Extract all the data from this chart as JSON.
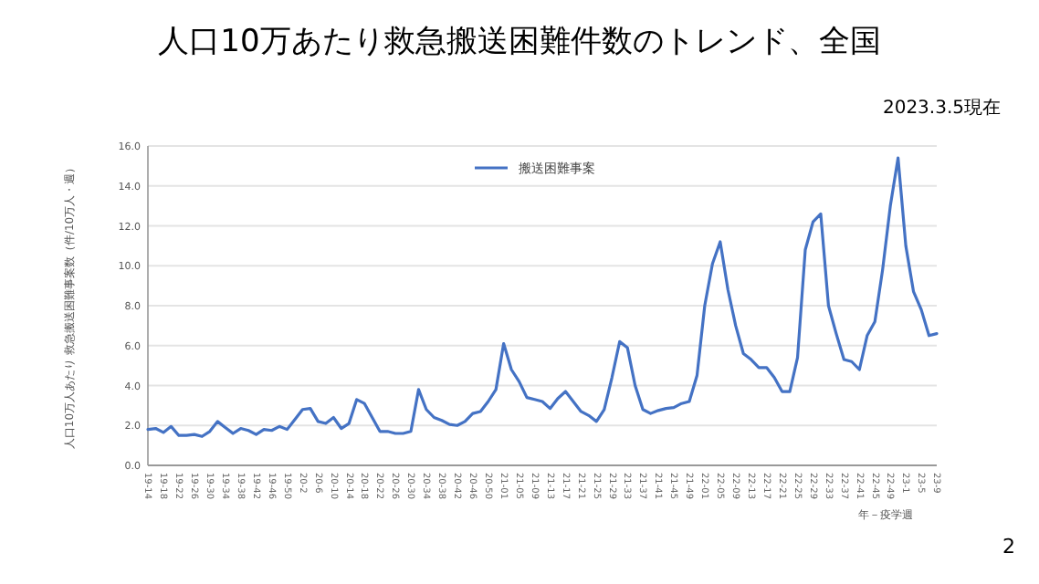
{
  "chart_data": {
    "type": "line",
    "title": "人口10万あたり救急搬送困難件数のトレンド、全国",
    "subtitle": "2023.3.5現在",
    "ylabel": "人口10万人あたり 救急搬送困難事案数（件/10万人・週）",
    "xlabel": "年－疫学週",
    "annotations": [
      "2"
    ],
    "categories": [
      "19-14",
      null,
      "19-18",
      null,
      "19-22",
      null,
      "19-26",
      null,
      "19-30",
      null,
      "19-34",
      null,
      "19-38",
      null,
      "19-42",
      null,
      "19-46",
      null,
      "19-50",
      null,
      "20-2",
      null,
      "20-6",
      null,
      "20-10",
      null,
      "20-14",
      null,
      "20-18",
      null,
      "20-22",
      null,
      "20-26",
      null,
      "20-30",
      null,
      "20-34",
      null,
      "20-38",
      null,
      "20-42",
      null,
      "20-46",
      null,
      "20-50",
      null,
      "21-01",
      null,
      "21-05",
      null,
      "21-09",
      null,
      "21-13",
      null,
      "21-17",
      null,
      "21-21",
      null,
      "21-25",
      null,
      "21-29",
      null,
      "21-33",
      null,
      "21-37",
      null,
      "21-41",
      null,
      "21-45",
      null,
      "21-49",
      null,
      "22-01",
      null,
      "22-05",
      null,
      "22-09",
      null,
      "22-13",
      null,
      "22-17",
      null,
      "22-21",
      null,
      "22-25",
      null,
      "22-29",
      null,
      "22-33",
      null,
      "22-37",
      null,
      "22-41",
      null,
      "22-45",
      null,
      "22-49",
      null,
      "23-1",
      null,
      "23-5",
      null,
      "23-9"
    ],
    "series": [
      {
        "name": "搬送困難事案",
        "color": "#4472c4",
        "values": [
          1.8,
          1.85,
          1.65,
          1.95,
          1.5,
          1.5,
          1.55,
          1.45,
          1.7,
          2.2,
          1.9,
          1.6,
          1.85,
          1.75,
          1.55,
          1.8,
          1.75,
          1.95,
          1.8,
          2.3,
          2.8,
          2.85,
          2.2,
          2.1,
          2.4,
          1.85,
          2.1,
          3.3,
          3.1,
          2.4,
          1.7,
          1.7,
          1.6,
          1.6,
          1.7,
          3.8,
          2.8,
          2.4,
          2.25,
          2.05,
          2.0,
          2.2,
          2.6,
          2.7,
          3.2,
          3.8,
          6.1,
          4.8,
          4.2,
          3.4,
          3.3,
          3.2,
          2.85,
          3.35,
          3.7,
          3.2,
          2.7,
          2.5,
          2.2,
          2.8,
          4.4,
          6.2,
          5.9,
          4.0,
          2.8,
          2.6,
          2.75,
          2.85,
          2.9,
          3.1,
          3.2,
          4.5,
          8.0,
          10.1,
          11.2,
          8.8,
          7.0,
          5.6,
          5.3,
          4.9,
          4.9,
          4.4,
          3.7,
          3.7,
          5.4,
          10.8,
          12.2,
          12.6,
          8.0,
          6.6,
          5.3,
          5.2,
          4.8,
          6.5,
          7.2,
          9.8,
          13.0,
          15.4,
          11.0,
          8.7,
          7.8,
          6.5,
          6.6
        ]
      }
    ],
    "ylim": [
      0,
      16
    ],
    "yticks": [
      {
        "value": 0,
        "label": "0.0"
      },
      {
        "value": 2,
        "label": "2.0"
      },
      {
        "value": 4,
        "label": "4.0"
      },
      {
        "value": 6,
        "label": "6.0"
      },
      {
        "value": 8,
        "label": "8.0"
      },
      {
        "value": 10,
        "label": "10.0"
      },
      {
        "value": 12,
        "label": "12.0"
      },
      {
        "value": 14,
        "label": "14.0"
      },
      {
        "value": 16,
        "label": "16.0"
      }
    ],
    "grid": "y",
    "legend": "top",
    "marker": "none",
    "line_style": "solid"
  }
}
